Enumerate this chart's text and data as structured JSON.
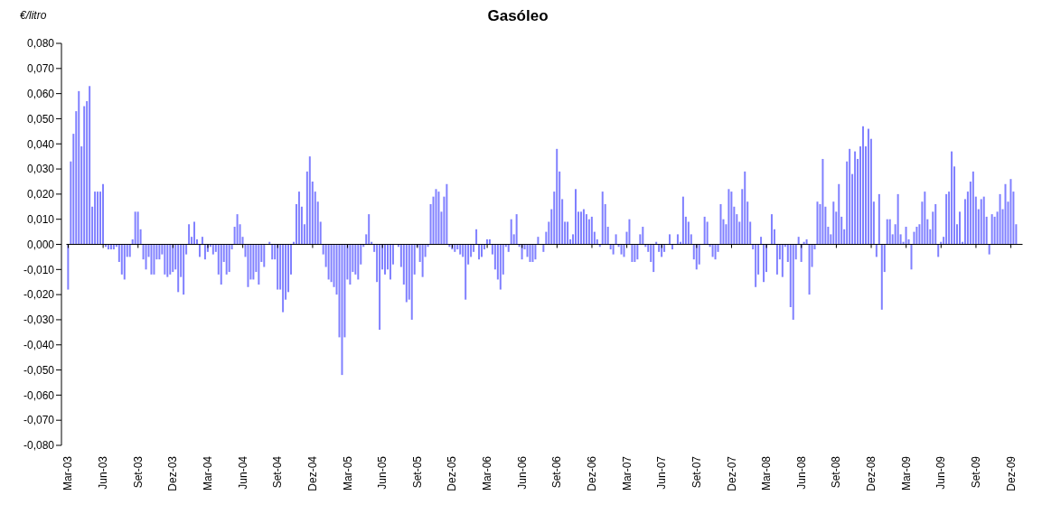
{
  "chart_data": {
    "type": "bar",
    "title": "Gasóleo",
    "ylabel": "€/litro",
    "color": "#8080ff",
    "categories": [
      "Mar-03",
      null,
      null,
      null,
      null,
      null,
      null,
      null,
      null,
      null,
      null,
      null,
      null,
      "Jun-03",
      null,
      null,
      null,
      null,
      null,
      null,
      null,
      null,
      null,
      null,
      null,
      null,
      "Set-03",
      null,
      null,
      null,
      null,
      null,
      null,
      null,
      null,
      null,
      null,
      null,
      null,
      "Dez-03",
      null,
      null,
      null,
      null,
      null,
      null,
      null,
      null,
      null,
      null,
      null,
      null,
      "Mar-04",
      null,
      null,
      null,
      null,
      null,
      null,
      null,
      null,
      null,
      null,
      null,
      null,
      "Jun-04",
      null,
      null,
      null,
      null,
      null,
      null,
      null,
      null,
      null,
      null,
      null,
      null,
      "Set-04",
      null,
      null,
      null,
      null,
      null,
      null,
      null,
      null,
      null,
      null,
      null,
      null,
      "Dez-04",
      null,
      null,
      null,
      null,
      null,
      null,
      null,
      null,
      null,
      null,
      null,
      null,
      "Mar-05",
      null,
      null,
      null,
      null,
      null,
      null,
      null,
      null,
      null,
      null,
      null,
      null,
      "Jun-05",
      null,
      null,
      null,
      null,
      null,
      null,
      null,
      null,
      null,
      null,
      null,
      null,
      "Set-05",
      null,
      null,
      null,
      null,
      null,
      null,
      null,
      null,
      null,
      null,
      null,
      null,
      "Dez-05",
      null,
      null,
      null,
      null,
      null,
      null,
      null,
      null,
      null,
      null,
      null,
      null,
      "Mar-06",
      null,
      null,
      null,
      null,
      null,
      null,
      null,
      null,
      null,
      null,
      null,
      null,
      "Jun-06",
      null,
      null,
      null,
      null,
      null,
      null,
      null,
      null,
      null,
      null,
      null,
      null,
      "Set-06",
      null,
      null,
      null,
      null,
      null,
      null,
      null,
      null,
      null,
      null,
      null,
      null,
      "Dez-06",
      null,
      null,
      null,
      null,
      null,
      null,
      null,
      null,
      null,
      null,
      null,
      null,
      "Mar-07",
      null,
      null,
      null,
      null,
      null,
      null,
      null,
      null,
      null,
      null,
      null,
      null,
      "Jun-07",
      null,
      null,
      null,
      null,
      null,
      null,
      null,
      null,
      null,
      null,
      null,
      null,
      "Set-07",
      null,
      null,
      null,
      null,
      null,
      null,
      null,
      null,
      null,
      null,
      null,
      null,
      "Dez-07",
      null,
      null,
      null,
      null,
      null,
      null,
      null,
      null,
      null,
      null,
      null,
      null,
      "Mar-08",
      null,
      null,
      null,
      null,
      null,
      null,
      null,
      null,
      null,
      null,
      null,
      null,
      "Jun-08",
      null,
      null,
      null,
      null,
      null,
      null,
      null,
      null,
      null,
      null,
      null,
      null,
      "Set-08",
      null,
      null,
      null,
      null,
      null,
      null,
      null,
      null,
      null,
      null,
      null,
      null,
      "Dez-08",
      null,
      null,
      null,
      null,
      null,
      null,
      null,
      null,
      null,
      null,
      null,
      null,
      "Mar-09",
      null,
      null,
      null,
      null,
      null,
      null,
      null,
      null,
      null,
      null,
      null,
      null,
      "Jun-09",
      null,
      null,
      null,
      null,
      null,
      null,
      null,
      null,
      null,
      null,
      null,
      null,
      "Set-09",
      null,
      null,
      null,
      null,
      null,
      null,
      null,
      null,
      null,
      null,
      null,
      null,
      "Dez-09",
      null,
      null
    ],
    "values": [
      -0.018,
      0.033,
      0.044,
      0.053,
      0.061,
      0.039,
      0.055,
      0.057,
      0.063,
      0.015,
      0.021,
      0.021,
      0.021,
      0.024,
      -0.001,
      -0.002,
      -0.002,
      -0.002,
      -0.001,
      -0.007,
      -0.012,
      -0.014,
      -0.005,
      -0.005,
      0.002,
      0.013,
      0.013,
      0.006,
      -0.006,
      -0.01,
      -0.005,
      -0.012,
      -0.012,
      -0.006,
      -0.006,
      -0.004,
      -0.012,
      -0.013,
      -0.012,
      -0.011,
      -0.01,
      -0.019,
      -0.013,
      -0.02,
      -0.004,
      0.008,
      0.003,
      0.009,
      0.002,
      -0.005,
      0.003,
      -0.006,
      -0.003,
      -0.001,
      -0.004,
      -0.003,
      -0.012,
      -0.016,
      -0.007,
      -0.012,
      -0.011,
      -0.002,
      0.007,
      0.012,
      0.008,
      0.003,
      -0.005,
      -0.017,
      -0.014,
      -0.014,
      -0.011,
      -0.016,
      -0.007,
      -0.009,
      null,
      0.001,
      -0.006,
      -0.006,
      -0.018,
      -0.018,
      -0.027,
      -0.022,
      -0.019,
      -0.012,
      0.001,
      0.016,
      0.021,
      0.015,
      0.008,
      0.029,
      0.035,
      0.025,
      0.021,
      0.017,
      0.009,
      -0.004,
      -0.009,
      -0.014,
      -0.015,
      -0.017,
      -0.02,
      -0.037,
      -0.052,
      -0.037,
      -0.014,
      -0.016,
      -0.011,
      -0.012,
      -0.014,
      -0.008,
      -0.001,
      0.004,
      0.012,
      0.001,
      -0.003,
      -0.015,
      -0.034,
      -0.01,
      -0.012,
      -0.01,
      -0.014,
      -0.008,
      null,
      -0.001,
      -0.009,
      -0.016,
      -0.023,
      -0.022,
      -0.03,
      -0.012,
      -0.001,
      -0.007,
      -0.013,
      -0.005,
      -0.001,
      0.016,
      0.019,
      0.022,
      0.021,
      0.013,
      0.019,
      0.024,
      -0.001,
      -0.002,
      -0.003,
      -0.002,
      -0.004,
      -0.005,
      -0.022,
      -0.008,
      -0.005,
      -0.003,
      0.006,
      -0.006,
      -0.005,
      -0.002,
      0.002,
      0.002,
      -0.004,
      -0.01,
      -0.014,
      -0.018,
      -0.012,
      -0.001,
      -0.003,
      0.01,
      0.004,
      0.012,
      -0.001,
      -0.006,
      -0.002,
      -0.005,
      -0.007,
      -0.007,
      -0.006,
      0.003,
      null,
      -0.003,
      0.005,
      0.009,
      0.014,
      0.021,
      0.038,
      0.029,
      0.018,
      0.009,
      0.009,
      0.002,
      0.004,
      0.022,
      0.013,
      0.013,
      0.014,
      0.012,
      0.01,
      0.011,
      0.005,
      0.002,
      -0.001,
      0.021,
      0.016,
      0.007,
      -0.002,
      -0.004,
      0.004,
      -0.001,
      -0.004,
      -0.005,
      0.005,
      0.01,
      -0.007,
      -0.007,
      -0.006,
      0.004,
      0.007,
      -0.001,
      -0.003,
      -0.007,
      -0.011,
      0.001,
      -0.003,
      -0.005,
      -0.003,
      null,
      0.004,
      -0.002,
      null,
      0.004,
      0.001,
      0.019,
      0.011,
      0.009,
      0.004,
      -0.006,
      -0.01,
      -0.008,
      null,
      0.011,
      0.009,
      -0.001,
      -0.005,
      -0.006,
      -0.003,
      0.016,
      0.01,
      0.008,
      0.022,
      0.021,
      0.015,
      0.012,
      0.009,
      0.022,
      0.029,
      0.017,
      0.009,
      -0.002,
      -0.017,
      -0.012,
      0.003,
      -0.015,
      -0.011,
      null,
      0.012,
      0.006,
      -0.012,
      -0.006,
      -0.013,
      -0.001,
      -0.007,
      -0.025,
      -0.03,
      -0.006,
      0.003,
      -0.007,
      0.001,
      0.002,
      -0.02,
      -0.009,
      -0.002,
      0.017,
      0.016,
      0.034,
      0.015,
      0.007,
      0.004,
      0.017,
      0.013,
      0.024,
      0.011,
      0.006,
      0.033,
      0.038,
      0.028,
      0.037,
      0.034,
      0.039,
      0.047,
      0.039,
      0.046,
      0.042,
      0.017,
      -0.005,
      0.02,
      -0.026,
      -0.011,
      0.01,
      0.01,
      0.004,
      0.008,
      0.02,
      0.004,
      0.001,
      0.007,
      0.002,
      -0.01,
      0.005,
      0.007,
      0.008,
      0.017,
      0.021,
      0.01,
      0.006,
      0.013,
      0.016,
      -0.005,
      0.001,
      0.003,
      0.02,
      0.021,
      0.037,
      0.031,
      0.008,
      0.013,
      0.001,
      0.018,
      0.021,
      0.025,
      0.029,
      0.019,
      0.014,
      0.018,
      0.019,
      0.011,
      -0.004,
      0.012,
      0.011,
      0.013,
      0.02,
      0.014,
      0.024,
      0.017,
      0.026,
      0.021,
      0.008
    ],
    "ylim": [
      -0.08,
      0.08
    ],
    "yticks": [
      {
        "value": -0.08,
        "label": "-0,080"
      },
      {
        "value": -0.07,
        "label": "-0,070"
      },
      {
        "value": -0.06,
        "label": "-0,060"
      },
      {
        "value": -0.05,
        "label": "-0,050"
      },
      {
        "value": -0.04,
        "label": "-0,040"
      },
      {
        "value": -0.03,
        "label": "-0,030"
      },
      {
        "value": -0.02,
        "label": "-0,020"
      },
      {
        "value": -0.01,
        "label": "-0,010"
      },
      {
        "value": 0,
        "label": "0,000"
      },
      {
        "value": 0.01,
        "label": "0,010"
      },
      {
        "value": 0.02,
        "label": "0,020"
      },
      {
        "value": 0.03,
        "label": "0,030"
      },
      {
        "value": 0.04,
        "label": "0,040"
      },
      {
        "value": 0.05,
        "label": "0,050"
      },
      {
        "value": 0.06,
        "label": "0,060"
      },
      {
        "value": 0.07,
        "label": "0,070"
      },
      {
        "value": 0.08,
        "label": "0,080"
      }
    ]
  }
}
